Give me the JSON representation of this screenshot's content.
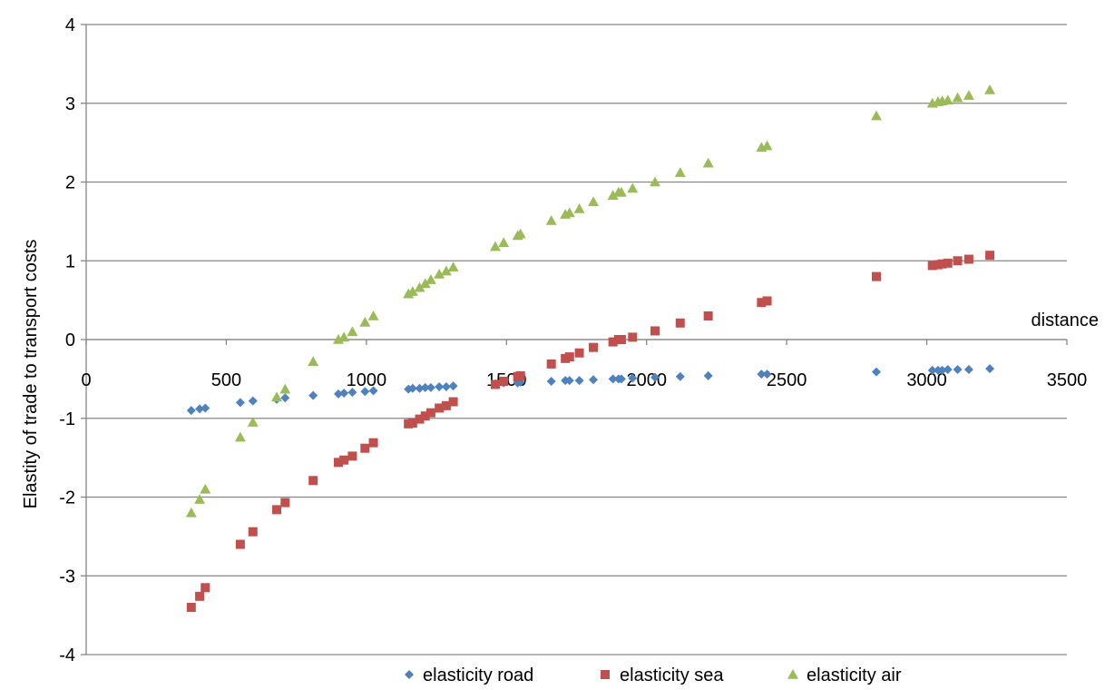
{
  "chart_data": {
    "type": "scatter",
    "title": "",
    "xlabel": "distance",
    "ylabel": "Elastity of trade to transport costs",
    "xlim": [
      0,
      3500
    ],
    "ylim": [
      -4,
      4
    ],
    "x_ticks": [
      0,
      500,
      1000,
      1500,
      2000,
      2500,
      3000,
      3500
    ],
    "y_ticks": [
      -4,
      -3,
      -2,
      -1,
      0,
      1,
      2,
      3,
      4
    ],
    "grid": "horizontal",
    "legend_position": "bottom",
    "series": [
      {
        "name": "elasticity road",
        "marker": "diamond",
        "color": "#4F81BD",
        "x": [
          375,
          405,
          425,
          550,
          595,
          680,
          710,
          810,
          900,
          920,
          950,
          995,
          1025,
          1150,
          1165,
          1190,
          1210,
          1230,
          1260,
          1285,
          1310,
          1460,
          1490,
          1540,
          1550,
          1660,
          1710,
          1725,
          1760,
          1810,
          1880,
          1900,
          1910,
          1950,
          2030,
          2120,
          2220,
          2410,
          2430,
          2820,
          3020,
          3040,
          3055,
          3075,
          3110,
          3150,
          3225
        ],
        "y": [
          -0.9,
          -0.88,
          -0.87,
          -0.8,
          -0.78,
          -0.76,
          -0.74,
          -0.71,
          -0.69,
          -0.68,
          -0.67,
          -0.66,
          -0.65,
          -0.63,
          -0.62,
          -0.62,
          -0.61,
          -0.61,
          -0.6,
          -0.6,
          -0.59,
          -0.56,
          -0.55,
          -0.55,
          -0.54,
          -0.53,
          -0.52,
          -0.52,
          -0.52,
          -0.51,
          -0.5,
          -0.5,
          -0.5,
          -0.49,
          -0.48,
          -0.47,
          -0.46,
          -0.44,
          -0.44,
          -0.41,
          -0.39,
          -0.39,
          -0.39,
          -0.38,
          -0.38,
          -0.38,
          -0.37
        ]
      },
      {
        "name": "elasticity sea",
        "marker": "square",
        "color": "#C0504D",
        "x": [
          375,
          405,
          425,
          550,
          595,
          680,
          710,
          810,
          900,
          920,
          950,
          995,
          1025,
          1150,
          1165,
          1190,
          1210,
          1230,
          1260,
          1285,
          1310,
          1460,
          1490,
          1540,
          1550,
          1660,
          1710,
          1725,
          1760,
          1810,
          1880,
          1900,
          1910,
          1950,
          2030,
          2120,
          2220,
          2410,
          2430,
          2820,
          3020,
          3040,
          3055,
          3075,
          3110,
          3150,
          3225
        ],
        "y": [
          -3.4,
          -3.26,
          -3.15,
          -2.6,
          -2.44,
          -2.16,
          -2.07,
          -1.79,
          -1.56,
          -1.53,
          -1.48,
          -1.38,
          -1.31,
          -1.07,
          -1.06,
          -1.01,
          -0.97,
          -0.93,
          -0.87,
          -0.84,
          -0.79,
          -0.57,
          -0.53,
          -0.47,
          -0.46,
          -0.31,
          -0.24,
          -0.22,
          -0.17,
          -0.1,
          -0.03,
          0.0,
          0.0,
          0.03,
          0.11,
          0.21,
          0.3,
          0.47,
          0.49,
          0.8,
          0.94,
          0.95,
          0.96,
          0.97,
          1.0,
          1.02,
          1.07
        ]
      },
      {
        "name": "elasticity air",
        "marker": "triangle",
        "color": "#9BBB59",
        "x": [
          375,
          405,
          425,
          550,
          595,
          680,
          710,
          810,
          900,
          920,
          950,
          995,
          1025,
          1150,
          1165,
          1190,
          1210,
          1230,
          1260,
          1285,
          1310,
          1460,
          1490,
          1540,
          1550,
          1660,
          1710,
          1725,
          1760,
          1810,
          1880,
          1900,
          1910,
          1950,
          2030,
          2120,
          2220,
          2410,
          2430,
          2820,
          3020,
          3040,
          3055,
          3075,
          3110,
          3150,
          3225
        ],
        "y": [
          -2.2,
          -2.03,
          -1.9,
          -1.24,
          -1.05,
          -0.73,
          -0.63,
          -0.28,
          0.0,
          0.03,
          0.1,
          0.22,
          0.3,
          0.58,
          0.61,
          0.66,
          0.71,
          0.76,
          0.83,
          0.87,
          0.92,
          1.18,
          1.23,
          1.32,
          1.34,
          1.51,
          1.59,
          1.61,
          1.66,
          1.75,
          1.83,
          1.87,
          1.87,
          1.92,
          2.0,
          2.12,
          2.24,
          2.44,
          2.46,
          2.84,
          3.0,
          3.02,
          3.03,
          3.04,
          3.07,
          3.1,
          3.17
        ]
      }
    ]
  }
}
